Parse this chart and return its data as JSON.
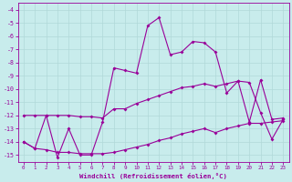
{
  "xlabel": "Windchill (Refroidissement éolien,°C)",
  "bg_color": "#c8ecec",
  "grid_color": "#b0d8d8",
  "line_color": "#990099",
  "ylim": [
    -15.5,
    -3.5
  ],
  "xlim": [
    -0.5,
    23.5
  ],
  "yticks": [
    -15,
    -14,
    -13,
    -12,
    -11,
    -10,
    -9,
    -8,
    -7,
    -6,
    -5,
    -4
  ],
  "xticks": [
    0,
    1,
    2,
    3,
    4,
    5,
    6,
    7,
    8,
    9,
    10,
    11,
    12,
    13,
    14,
    15,
    16,
    17,
    18,
    19,
    20,
    21,
    22,
    23
  ],
  "line1_x": [
    0,
    1,
    2,
    3,
    4,
    5,
    6,
    7,
    8,
    9,
    10,
    11,
    12,
    13,
    14,
    15,
    16,
    17,
    18,
    19,
    20,
    21,
    22,
    23
  ],
  "line1_y": [
    -14.0,
    -14.5,
    -12.0,
    -15.2,
    -13.0,
    -15.0,
    -15.0,
    -12.5,
    -8.4,
    -8.6,
    -8.8,
    -5.2,
    -4.6,
    -7.4,
    -7.2,
    -6.4,
    -6.5,
    -7.2,
    -10.3,
    -9.4,
    -9.5,
    -11.8,
    -13.8,
    -12.3
  ],
  "line2_x": [
    0,
    1,
    2,
    3,
    4,
    5,
    6,
    7,
    8,
    9,
    10,
    11,
    12,
    13,
    14,
    15,
    16,
    17,
    18,
    19,
    20,
    21,
    22,
    23
  ],
  "line2_y": [
    -12.0,
    -12.0,
    -12.0,
    -12.0,
    -12.0,
    -12.1,
    -12.1,
    -12.2,
    -11.5,
    -11.5,
    -11.1,
    -10.8,
    -10.5,
    -10.2,
    -9.9,
    -9.8,
    -9.6,
    -9.8,
    -9.6,
    -9.4,
    -12.5,
    -9.3,
    -12.3,
    -12.2
  ],
  "line3_x": [
    0,
    1,
    2,
    3,
    4,
    5,
    6,
    7,
    8,
    9,
    10,
    11,
    12,
    13,
    14,
    15,
    16,
    17,
    18,
    19,
    20,
    21,
    22,
    23
  ],
  "line3_y": [
    -14.0,
    -14.5,
    -14.6,
    -14.8,
    -14.8,
    -14.9,
    -14.9,
    -14.9,
    -14.8,
    -14.6,
    -14.4,
    -14.2,
    -13.9,
    -13.7,
    -13.4,
    -13.2,
    -13.0,
    -13.3,
    -13.0,
    -12.8,
    -12.6,
    -12.6,
    -12.5,
    -12.4
  ]
}
